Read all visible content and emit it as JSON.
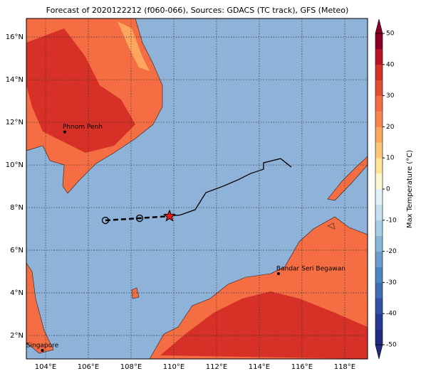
{
  "map": {
    "title": "Forecast of 2020122212 (f060-066), Sources: GDACS (TC track), GFS (Meteo)",
    "xlim": [
      103.1,
      119.07
    ],
    "ylim": [
      0.9,
      16.87
    ],
    "lon_ticks": [
      {
        "value": 104,
        "label": "104°E"
      },
      {
        "value": 106,
        "label": "106°E"
      },
      {
        "value": 108,
        "label": "108°E"
      },
      {
        "value": 110,
        "label": "110°E"
      },
      {
        "value": 112,
        "label": "112°E"
      },
      {
        "value": 114,
        "label": "114°E"
      },
      {
        "value": 116,
        "label": "116°E"
      },
      {
        "value": 118,
        "label": "118°E"
      }
    ],
    "lat_ticks": [
      {
        "value": 2,
        "label": "2°N"
      },
      {
        "value": 4,
        "label": "4°N"
      },
      {
        "value": 6,
        "label": "6°N"
      },
      {
        "value": 8,
        "label": "8°N"
      },
      {
        "value": 10,
        "label": "10°N"
      },
      {
        "value": 12,
        "label": "12°N"
      },
      {
        "value": 14,
        "label": "14°N"
      },
      {
        "value": 16,
        "label": "16°N"
      }
    ],
    "cities": [
      {
        "name": "Phnom Penh",
        "lon": 104.9,
        "lat": 11.55
      },
      {
        "name": "Bandar Seri Begawan",
        "lon": 114.9,
        "lat": 4.9
      },
      {
        "name": "Singapore",
        "lon": 103.85,
        "lat": 1.3
      }
    ],
    "track": {
      "lon": [
        109.8,
        110.3,
        111.0,
        111.5,
        112.3,
        113.0,
        113.6,
        114.2,
        114.2,
        115.0,
        115.5
      ],
      "lat": [
        7.6,
        7.65,
        7.9,
        8.7,
        9.0,
        9.3,
        9.6,
        9.8,
        10.1,
        10.3,
        9.9
      ]
    },
    "forecast": {
      "lon": [
        106.8,
        108.4,
        109.8
      ],
      "lat": [
        7.4,
        7.5,
        7.6
      ]
    },
    "colorbar": {
      "label": "Max Temperature (°C)",
      "lim": [
        -50,
        50
      ],
      "ticks": [
        -50,
        -40,
        -30,
        -20,
        -10,
        0,
        10,
        20,
        30,
        40,
        50
      ],
      "colors": [
        "#1f2b80",
        "#263a94",
        "#3151a5",
        "#3e6eb5",
        "#4f86c1",
        "#6a9ecc",
        "#86b6d8",
        "#a5cde4",
        "#c3e1ee",
        "#e0f2f7",
        "#fbf8cf",
        "#fee39a",
        "#fdc67a",
        "#fca65e",
        "#f88550",
        "#f46d43",
        "#e34e32",
        "#d73027",
        "#b81626",
        "#8b0024"
      ]
    }
  }
}
